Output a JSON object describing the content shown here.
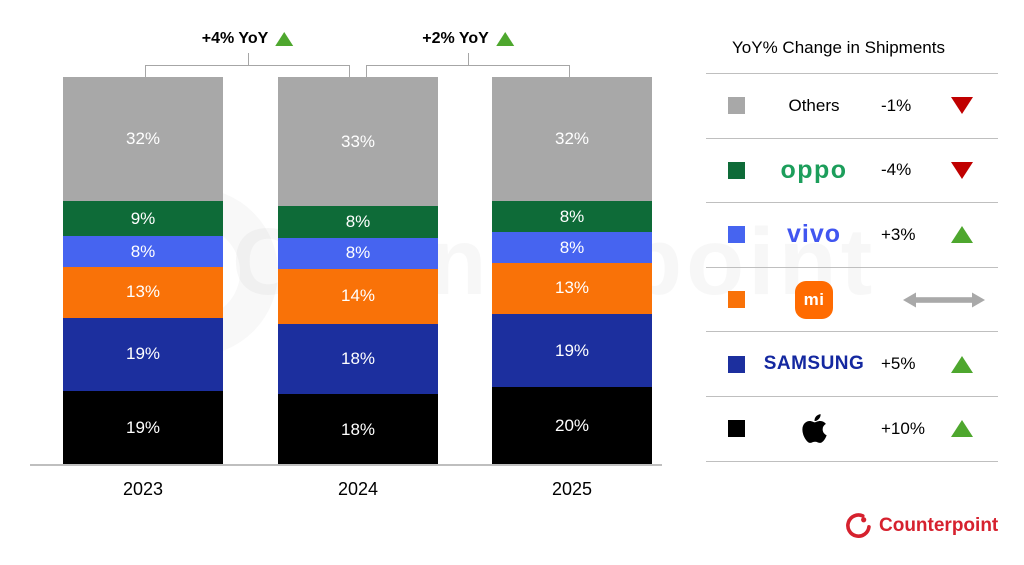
{
  "chart_data": {
    "type": "bar",
    "stacked": true,
    "title": "",
    "categories": [
      "2023",
      "2024",
      "2025"
    ],
    "series": [
      {
        "name": "Apple",
        "color": "#000000",
        "values": [
          19,
          18,
          20
        ]
      },
      {
        "name": "Samsung",
        "color": "#1C2F9E",
        "values": [
          19,
          18,
          19
        ]
      },
      {
        "name": "Xiaomi",
        "color": "#F97208",
        "values": [
          13,
          14,
          13
        ]
      },
      {
        "name": "vivo",
        "color": "#4664F0",
        "values": [
          8,
          8,
          8
        ]
      },
      {
        "name": "OPPO",
        "color": "#0E6B38",
        "values": [
          9,
          8,
          8
        ]
      },
      {
        "name": "Others",
        "color": "#A8A8A8",
        "values": [
          32,
          33,
          32
        ]
      }
    ],
    "value_suffix": "%",
    "annotations": [
      {
        "label": "+4% YoY",
        "trend": "up",
        "between": [
          "2023",
          "2024"
        ]
      },
      {
        "label": "+2% YoY",
        "trend": "up",
        "between": [
          "2024",
          "2025"
        ]
      }
    ],
    "ylim": [
      0,
      100
    ],
    "grid": false,
    "legend_position": "right"
  },
  "legend": {
    "title": "YoY% Change in Shipments",
    "rows": [
      {
        "id": "others",
        "logo": "text",
        "logo_text": "Others",
        "logo_color": "#000000",
        "swatch": "#A8A8A8",
        "change": "-1%",
        "trend": "down"
      },
      {
        "id": "oppo",
        "logo": "oppo",
        "logo_text": "oppo",
        "logo_color": "#1C9E5B",
        "swatch": "#0E6B38",
        "change": "-4%",
        "trend": "down"
      },
      {
        "id": "vivo",
        "logo": "vivo",
        "logo_text": "vivo",
        "logo_color": "#4156F0",
        "swatch": "#4664F0",
        "change": "+3%",
        "trend": "up"
      },
      {
        "id": "xiaomi",
        "logo": "mi",
        "logo_text": "mi",
        "logo_color": "#FF6B01",
        "swatch": "#F97208",
        "change": "",
        "trend": "flat"
      },
      {
        "id": "samsung",
        "logo": "samsung",
        "logo_text": "SAMSUNG",
        "logo_color": "#1428A0",
        "swatch": "#1C2F9E",
        "change": "+5%",
        "trend": "up"
      },
      {
        "id": "apple",
        "logo": "apple",
        "logo_text": "",
        "logo_color": "#000000",
        "swatch": "#000000",
        "change": "+10%",
        "trend": "up"
      }
    ]
  },
  "colors": {
    "trend_up": "#4EA72E",
    "trend_down": "#C00000",
    "flat_arrow": "#A9A9A9",
    "axis": "#BFBFBF",
    "bracket": "#A6A6A6",
    "counterpoint_red": "#D6212E"
  },
  "footer": {
    "brand": "Counterpoint"
  },
  "watermark": "Counterpoint"
}
